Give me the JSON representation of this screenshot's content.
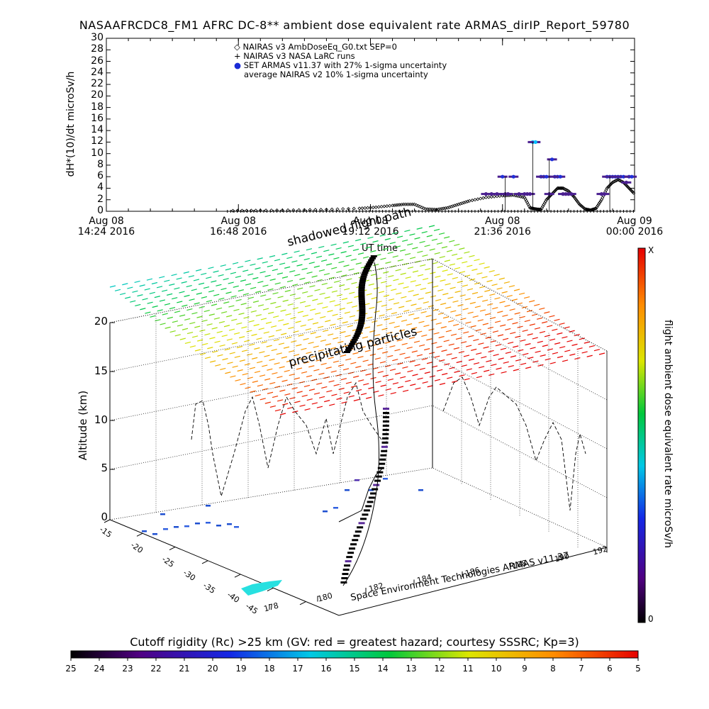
{
  "title": "NASAAFRCDC8_FM1 AFRC DC-8** ambient dose equivalent rate ARMAS_dirIP_Report_59780",
  "legend": [
    {
      "marker": "◇",
      "text": "NAIRAS v3 AmbDoseEq_G0.txt SEP=0",
      "color": "#000000"
    },
    {
      "marker": "+",
      "text": "NAIRAS v3 NASA LaRC runs",
      "color": "#000000"
    },
    {
      "marker": "●",
      "text": "SET ARMAS v11.37 with 27% 1-sigma uncertainty",
      "color": "#1a2bd6"
    },
    {
      "marker": "",
      "text": "average NAIRAS v2 10% 1-sigma uncertainty",
      "color": "#000000"
    }
  ],
  "chart_data": [
    {
      "type": "scatter",
      "ylabel": "dH*(10)/dt microSv/h",
      "xlabel": "UT time",
      "ylim": [
        0,
        30
      ],
      "yticks": [
        0,
        2,
        4,
        6,
        8,
        10,
        12,
        14,
        16,
        18,
        20,
        22,
        24,
        26,
        28,
        30
      ],
      "xticks": [
        {
          "line1": "Aug 08",
          "line2": "14:24 2016"
        },
        {
          "line1": "Aug 08",
          "line2": "16:48 2016"
        },
        {
          "line1": "Aug 08",
          "line2": "19:12 2016"
        },
        {
          "line1": "Aug 08",
          "line2": "21:36 2016"
        },
        {
          "line1": "Aug 09",
          "line2": "00:00 2016"
        }
      ],
      "xlim_hours": [
        14.4,
        24.0
      ],
      "series": [
        {
          "name": "NAIRAS v3 AmbDoseEq_G0.txt SEP=0",
          "x": [
            16.7,
            17.2,
            17.8,
            18.4,
            19.0,
            19.3,
            19.6,
            19.8,
            20.0,
            20.2,
            20.4,
            20.6,
            20.8,
            21.0,
            21.3,
            21.6,
            21.8,
            22.0,
            22.1,
            22.2,
            22.3,
            22.4,
            22.5,
            22.6,
            22.7,
            22.8,
            22.9,
            23.0,
            23.1,
            23.2,
            23.3,
            23.4,
            23.5,
            23.6,
            23.7,
            23.8,
            23.9,
            24.0
          ],
          "y": [
            0.1,
            0.15,
            0.2,
            0.3,
            0.5,
            0.7,
            1.0,
            1.2,
            1.2,
            0.4,
            0.3,
            0.6,
            1.2,
            1.8,
            2.4,
            2.7,
            2.8,
            2.4,
            0.6,
            0.4,
            0.3,
            2.0,
            3.0,
            4.0,
            4.0,
            3.5,
            2.5,
            1.2,
            0.4,
            0.2,
            0.5,
            2.0,
            4.0,
            5.0,
            5.5,
            5.0,
            4.0,
            3.0
          ]
        },
        {
          "name": "SET ARMAS v11.37 with 27% 1-sigma uncertainty",
          "x": [
            21.3,
            21.4,
            21.5,
            21.6,
            21.65,
            21.7,
            21.8,
            21.9,
            22.0,
            22.05,
            22.1,
            22.15,
            22.2,
            22.3,
            22.35,
            22.4,
            22.45,
            22.5,
            22.55,
            22.6,
            22.65,
            22.7,
            22.75,
            22.8,
            22.85,
            23.4,
            23.45,
            23.5,
            23.55,
            23.6,
            23.65,
            23.7,
            23.75,
            23.8,
            23.85,
            23.9,
            23.95
          ],
          "y": [
            3,
            3,
            3,
            6,
            3,
            3,
            6,
            3,
            3,
            3,
            3,
            12,
            12,
            6,
            6,
            6,
            3,
            9,
            6,
            6,
            6,
            3,
            3,
            3,
            3,
            3,
            3,
            6,
            6,
            6,
            6,
            6,
            6,
            6,
            5,
            6,
            6
          ]
        }
      ]
    },
    {
      "type": "scatter",
      "subtype": "3d-flight-path",
      "zlabel": "Altitude (km)",
      "zticks": [
        0,
        5,
        10,
        15,
        20
      ],
      "lat_ticks": [
        -15,
        -20,
        -25,
        -30,
        -35,
        -40,
        -45
      ],
      "lon_ticks": [
        178,
        180,
        182,
        184,
        186,
        188,
        190,
        192
      ],
      "annotations": [
        "shadowed flight path",
        "precipitating particles"
      ],
      "credit": "Space Environment Technologies ARMAS v11.37"
    }
  ],
  "colorbar_vertical": {
    "label": "flight ambient dose equivalent rate microSv/h",
    "top_label": "X",
    "bottom_label": "0"
  },
  "colorbar_horizontal": {
    "title": "Cutoff rigidity (Rc) >25 km (GV: red = greatest hazard; courtesy SSSRC; Kp=3)",
    "labels": [
      "25",
      "24",
      "23",
      "22",
      "21",
      "20",
      "19",
      "18",
      "17",
      "16",
      "15",
      "14",
      "13",
      "12",
      "11",
      "10",
      "9",
      "8",
      "7",
      "6",
      "5"
    ]
  }
}
